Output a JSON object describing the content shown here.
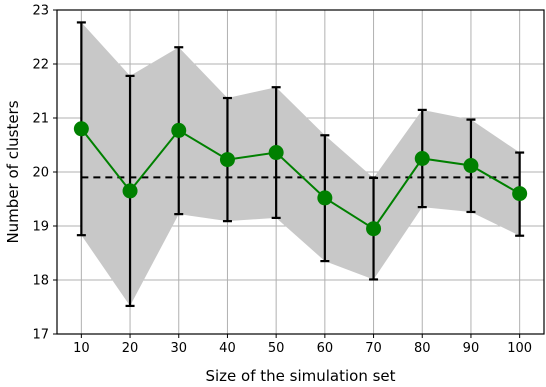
{
  "chart_data": {
    "type": "line",
    "title": "",
    "xlabel": "Size of the simulation set",
    "ylabel": "Number of clusters",
    "x": [
      10,
      20,
      30,
      40,
      50,
      60,
      70,
      80,
      90,
      100
    ],
    "xticks": [
      "10",
      "20",
      "30",
      "40",
      "50",
      "60",
      "70",
      "80",
      "90",
      "100"
    ],
    "yticks": [
      "17",
      "18",
      "19",
      "20",
      "21",
      "22",
      "23"
    ],
    "xlim": [
      5,
      105
    ],
    "ylim": [
      17,
      23
    ],
    "grid": true,
    "series": [
      {
        "values": [
          20.8,
          19.65,
          20.77,
          20.23,
          20.36,
          19.52,
          18.95,
          20.25,
          20.12,
          19.6
        ],
        "err_low": [
          18.83,
          17.52,
          19.22,
          19.09,
          19.15,
          18.35,
          18.01,
          19.35,
          19.26,
          18.82
        ],
        "err_high": [
          22.77,
          21.78,
          22.31,
          21.37,
          21.57,
          20.68,
          19.89,
          21.15,
          20.97,
          20.36
        ],
        "color": "#008000",
        "marker": "circle"
      }
    ],
    "reference_line": {
      "value": 19.9,
      "style": "dashed",
      "color": "#000000"
    },
    "band_color": "#c8c8c8",
    "errorbar_color": "#000000"
  }
}
